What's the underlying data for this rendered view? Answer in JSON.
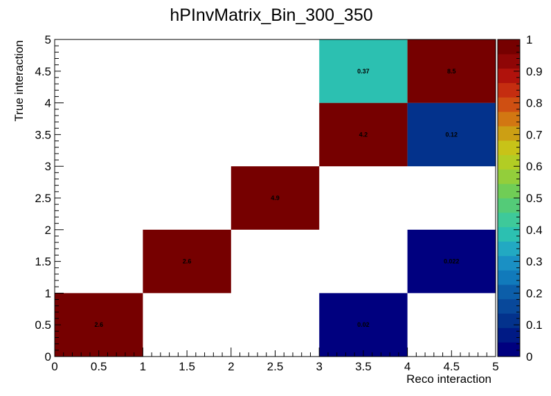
{
  "chart_data": {
    "type": "heatmap",
    "title": "hPInvMatrix_Bin_300_350",
    "xlabel": "Reco interaction",
    "ylabel": "True interaction",
    "xlim": [
      0,
      5
    ],
    "ylim": [
      0,
      5
    ],
    "zlim": [
      0,
      1
    ],
    "x_ticks": [
      "0",
      "0.5",
      "1",
      "1.5",
      "2",
      "2.5",
      "3",
      "3.5",
      "4",
      "4.5",
      "5"
    ],
    "y_ticks": [
      "0",
      "0.5",
      "1",
      "1.5",
      "2",
      "2.5",
      "3",
      "3.5",
      "4",
      "4.5",
      "5"
    ],
    "z_ticks": [
      "0",
      "0.1",
      "0.2",
      "0.3",
      "0.4",
      "0.5",
      "0.6",
      "0.7",
      "0.8",
      "0.9",
      "1"
    ],
    "cells": [
      {
        "x": [
          0,
          1
        ],
        "y": [
          0,
          1
        ],
        "value": 2.6,
        "label": "2.6"
      },
      {
        "x": [
          3,
          4
        ],
        "y": [
          0,
          1
        ],
        "value": 0.02,
        "label": "0.02"
      },
      {
        "x": [
          1,
          2
        ],
        "y": [
          1,
          2
        ],
        "value": 2.6,
        "label": "2.6"
      },
      {
        "x": [
          4,
          5
        ],
        "y": [
          1,
          2
        ],
        "value": 0.022,
        "label": "0.022"
      },
      {
        "x": [
          2,
          3
        ],
        "y": [
          2,
          3
        ],
        "value": 4.9,
        "label": "4.9"
      },
      {
        "x": [
          3,
          4
        ],
        "y": [
          3,
          4
        ],
        "value": 4.2,
        "label": "4.2"
      },
      {
        "x": [
          4,
          5
        ],
        "y": [
          3,
          4
        ],
        "value": 0.12,
        "label": "0.12"
      },
      {
        "x": [
          3,
          4
        ],
        "y": [
          4,
          5
        ],
        "value": 0.37,
        "label": "0.37"
      },
      {
        "x": [
          4,
          5
        ],
        "y": [
          4,
          5
        ],
        "value": 8.5,
        "label": "8.5"
      }
    ],
    "palette": [
      "#00007f",
      "#001a85",
      "#03328c",
      "#08489a",
      "#0c5ea9",
      "#117abb",
      "#1a90c4",
      "#22a9c2",
      "#2cc0b1",
      "#3ec99a",
      "#54cb78",
      "#70cd56",
      "#93ce3b",
      "#b2cd24",
      "#c8c318",
      "#cc9f14",
      "#d27712",
      "#cf4f12",
      "#c52d10",
      "#b0120c",
      "#8f0606",
      "#760000"
    ]
  }
}
